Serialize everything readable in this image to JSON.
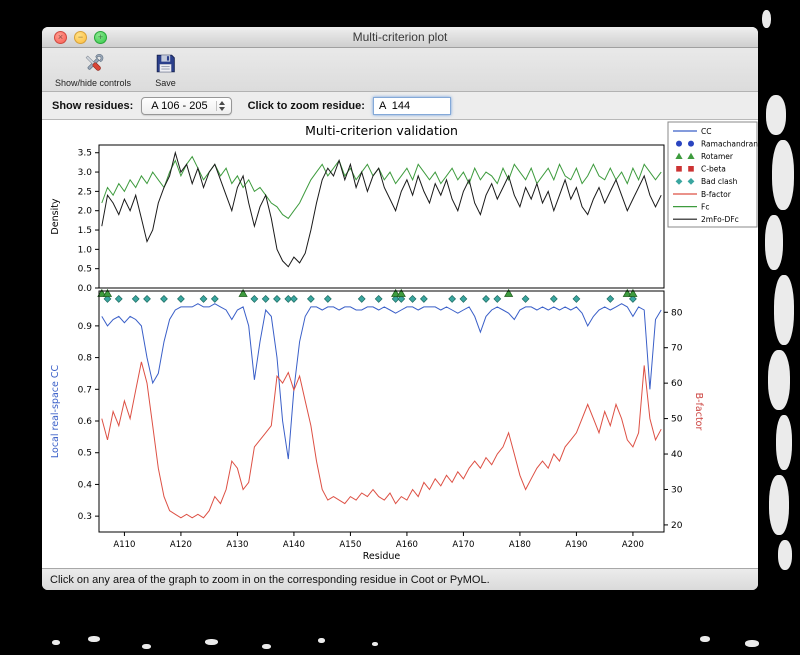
{
  "window": {
    "title": "Multi-criterion plot",
    "traffic": {
      "close": "×",
      "minimize": "−",
      "zoom": "+"
    },
    "toolbar": {
      "show_hide_label": "Show/hide controls",
      "save_label": "Save"
    },
    "controls": {
      "show_residues_label": "Show residues:",
      "residue_range_value": "A 106 - 205",
      "zoom_residue_label": "Click to zoom residue:",
      "zoom_residue_value": "A  144"
    },
    "status_text": "Click on any area of the graph to zoom in on the corresponding residue in Coot or PyMOL."
  },
  "chart_data": {
    "type": "line",
    "title": "Multi-criterion validation",
    "xlabel": "Residue",
    "x_min": 105.5,
    "x_max": 205.5,
    "x_first_residue": 106,
    "x_tick_values": [
      110,
      120,
      130,
      140,
      150,
      160,
      170,
      180,
      190,
      200
    ],
    "x_tick_labels": [
      "A110",
      "A120",
      "A130",
      "A140",
      "A150",
      "A160",
      "A170",
      "A180",
      "A190",
      "A200"
    ],
    "top_panel": {
      "ylabel": "Density",
      "ylim": [
        0,
        3.7
      ],
      "yticks": [
        0.0,
        0.5,
        1.0,
        1.5,
        2.0,
        2.5,
        3.0,
        3.5
      ],
      "series": [
        {
          "name": "Fc",
          "color": "#3e9b3e",
          "values": [
            2.2,
            2.6,
            2.4,
            2.7,
            2.5,
            2.8,
            2.6,
            2.9,
            2.7,
            3.0,
            2.8,
            2.6,
            3.0,
            3.3,
            2.9,
            3.2,
            3.4,
            3.1,
            2.8,
            3.0,
            3.2,
            2.9,
            3.1,
            2.7,
            2.9,
            2.6,
            2.8,
            2.5,
            2.6,
            2.4,
            2.2,
            2.1,
            1.9,
            1.8,
            2.0,
            2.2,
            2.5,
            2.8,
            3.0,
            3.2,
            2.9,
            3.1,
            3.3,
            2.9,
            3.1,
            2.8,
            3.0,
            3.2,
            2.9,
            3.1,
            2.8,
            3.0,
            2.7,
            2.9,
            3.1,
            2.8,
            3.2,
            3.0,
            2.8,
            3.0,
            2.7,
            2.9,
            3.1,
            2.8,
            3.0,
            2.7,
            3.1,
            2.8,
            3.0,
            2.9,
            2.7,
            3.1,
            2.8,
            3.2,
            3.0,
            2.8,
            3.1,
            2.7,
            2.9,
            3.1,
            2.8,
            3.2,
            2.9,
            2.8,
            3.1,
            2.7,
            2.9,
            3.2,
            2.9,
            2.8,
            3.1,
            2.8,
            3.0,
            2.7,
            3.1,
            2.8,
            3.2,
            3.0,
            2.8,
            3.0
          ]
        },
        {
          "name": "2mFo-DFc",
          "color": "#1a1a1a",
          "values": [
            1.6,
            2.4,
            2.2,
            1.9,
            2.3,
            2.0,
            2.4,
            1.8,
            1.2,
            1.5,
            2.2,
            2.6,
            2.9,
            3.5,
            3.0,
            3.2,
            2.7,
            3.1,
            2.6,
            3.0,
            3.2,
            2.8,
            2.4,
            2.0,
            2.6,
            2.9,
            2.2,
            1.6,
            2.1,
            2.4,
            1.8,
            1.0,
            0.7,
            0.55,
            0.8,
            0.65,
            0.9,
            1.5,
            2.2,
            2.8,
            3.1,
            2.9,
            3.3,
            2.8,
            3.2,
            2.6,
            3.0,
            2.5,
            2.9,
            3.1,
            2.6,
            2.3,
            2.0,
            2.5,
            2.8,
            2.4,
            2.9,
            2.5,
            2.2,
            2.7,
            2.4,
            2.8,
            2.3,
            2.0,
            2.5,
            2.8,
            2.2,
            1.9,
            2.4,
            2.7,
            2.3,
            2.6,
            2.9,
            2.4,
            2.1,
            2.6,
            2.3,
            2.7,
            2.2,
            2.5,
            2.0,
            2.4,
            2.8,
            2.3,
            2.6,
            2.1,
            1.9,
            2.3,
            2.6,
            2.2,
            2.5,
            2.8,
            2.4,
            2.0,
            2.3,
            2.6,
            2.9,
            2.4,
            2.1,
            2.4
          ]
        }
      ]
    },
    "bottom_panel": {
      "left_ylabel": "Local real-space CC",
      "left_ylabel_color": "#3a5fc8",
      "left_ylim": [
        0.25,
        1.01
      ],
      "left_yticks": [
        0.3,
        0.4,
        0.5,
        0.6,
        0.7,
        0.8,
        0.9
      ],
      "right_ylabel": "B-factor",
      "right_ylabel_color": "#cc4440",
      "right_ylim": [
        18,
        86
      ],
      "right_yticks": [
        20,
        30,
        40,
        50,
        60,
        70,
        80
      ],
      "series": [
        {
          "name": "CC",
          "axis": "left",
          "color": "#3a5fc8",
          "values": [
            0.93,
            0.9,
            0.92,
            0.93,
            0.91,
            0.93,
            0.92,
            0.9,
            0.8,
            0.72,
            0.75,
            0.85,
            0.92,
            0.95,
            0.96,
            0.96,
            0.96,
            0.97,
            0.96,
            0.96,
            0.97,
            0.96,
            0.95,
            0.92,
            0.95,
            0.96,
            0.9,
            0.73,
            0.85,
            0.95,
            0.93,
            0.8,
            0.6,
            0.48,
            0.7,
            0.85,
            0.93,
            0.96,
            0.96,
            0.95,
            0.96,
            0.96,
            0.95,
            0.96,
            0.96,
            0.95,
            0.95,
            0.96,
            0.96,
            0.95,
            0.96,
            0.95,
            0.94,
            0.95,
            0.96,
            0.96,
            0.95,
            0.96,
            0.96,
            0.96,
            0.95,
            0.96,
            0.95,
            0.94,
            0.95,
            0.96,
            0.93,
            0.88,
            0.93,
            0.95,
            0.96,
            0.95,
            0.94,
            0.92,
            0.95,
            0.96,
            0.96,
            0.95,
            0.96,
            0.95,
            0.96,
            0.95,
            0.96,
            0.95,
            0.96,
            0.94,
            0.9,
            0.93,
            0.95,
            0.96,
            0.95,
            0.96,
            0.97,
            0.96,
            0.93,
            0.96,
            0.95,
            0.7,
            0.92,
            0.95
          ]
        },
        {
          "name": "B-factor",
          "axis": "right",
          "color": "#dd5044",
          "values": [
            50,
            44,
            52,
            48,
            55,
            50,
            58,
            66,
            60,
            48,
            36,
            28,
            24,
            23,
            22,
            23,
            22,
            23,
            22,
            24,
            28,
            26,
            30,
            38,
            36,
            30,
            32,
            42,
            44,
            46,
            48,
            62,
            60,
            63,
            58,
            62,
            55,
            48,
            38,
            30,
            27,
            28,
            27,
            26,
            28,
            27,
            29,
            28,
            30,
            28,
            27,
            29,
            26,
            28,
            27,
            30,
            28,
            32,
            30,
            33,
            31,
            34,
            32,
            35,
            33,
            36,
            38,
            36,
            39,
            37,
            40,
            42,
            46,
            40,
            34,
            30,
            33,
            36,
            38,
            36,
            40,
            38,
            42,
            44,
            46,
            50,
            54,
            50,
            46,
            52,
            48,
            54,
            50,
            44,
            42,
            46,
            65,
            50,
            44,
            47
          ]
        }
      ],
      "markers": [
        {
          "name": "Bad clash",
          "shape": "diamond",
          "color": "#3aa6a0",
          "edge": "#1e6b60",
          "y_value": 0.985,
          "residues": [
            107,
            109,
            112,
            114,
            117,
            120,
            124,
            126,
            133,
            135,
            137,
            139,
            140,
            143,
            146,
            152,
            155,
            158,
            159,
            161,
            163,
            168,
            170,
            174,
            176,
            181,
            186,
            190,
            196,
            200
          ]
        },
        {
          "name": "Rotamer",
          "shape": "triangle",
          "color": "#3e9b3e",
          "edge": "#1e5e1e",
          "y_value": 1.002,
          "residues": [
            106,
            107,
            131,
            158,
            159,
            178,
            199,
            200
          ]
        }
      ]
    },
    "legend": [
      {
        "label": "CC",
        "symbol": "line",
        "color": "#3a5fc8"
      },
      {
        "label": "Ramachandran",
        "symbol": "circle-pair",
        "color": "#2a44c0"
      },
      {
        "label": "Rotamer",
        "symbol": "triangle-pair",
        "color": "#3e9b3e"
      },
      {
        "label": "C-beta",
        "symbol": "square-pair",
        "color": "#cc3333"
      },
      {
        "label": "Bad clash",
        "symbol": "diamond-pair",
        "color": "#3aa6a0"
      },
      {
        "label": "B-factor",
        "symbol": "line",
        "color": "#dd5044"
      },
      {
        "label": "Fc",
        "symbol": "line",
        "color": "#3e9b3e"
      },
      {
        "label": "2mFo-DFc",
        "symbol": "line",
        "color": "#1a1a1a"
      }
    ]
  }
}
